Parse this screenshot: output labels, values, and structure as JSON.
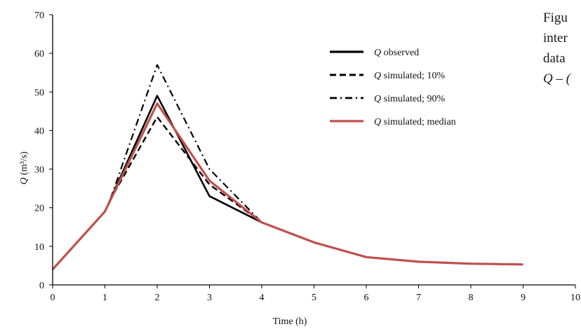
{
  "caption_fragments": [
    "Figu",
    "inter",
    "data",
    "Q – ("
  ],
  "chart_data": {
    "type": "line",
    "title": "",
    "xlabel": "Time (h)",
    "ylabel_italic": "Q",
    "ylabel_rest": " (m³/s)",
    "xlim": [
      0,
      10
    ],
    "ylim": [
      0,
      70
    ],
    "xticks": [
      0,
      1,
      2,
      3,
      4,
      5,
      6,
      7,
      8,
      9,
      10
    ],
    "yticks": [
      0,
      10,
      20,
      30,
      40,
      50,
      60,
      70
    ],
    "grid": false,
    "legend_position": "top-right",
    "series": [
      {
        "name_italic": "Q",
        "name": " observed",
        "color": "#000000",
        "dash": "solid",
        "points": [
          [
            0,
            4
          ],
          [
            1,
            19
          ],
          [
            2,
            49
          ],
          [
            3,
            23
          ],
          [
            4,
            16.2
          ],
          [
            5,
            11
          ],
          [
            6,
            7.2
          ],
          [
            7,
            6
          ],
          [
            8,
            5.5
          ],
          [
            9,
            5.3
          ]
        ]
      },
      {
        "name_italic": "Q",
        "name": " simulated; 10%",
        "color": "#000000",
        "dash": "dashed",
        "points": [
          [
            0,
            4
          ],
          [
            1,
            19
          ],
          [
            1.1,
            22
          ],
          [
            2,
            43.5
          ],
          [
            3,
            26
          ],
          [
            4,
            16.2
          ],
          [
            5,
            11
          ],
          [
            6,
            7.2
          ],
          [
            7,
            6
          ],
          [
            8,
            5.5
          ],
          [
            9,
            5.3
          ]
        ]
      },
      {
        "name_italic": "Q",
        "name": " simulated; 90%",
        "color": "#000000",
        "dash": "dashdot",
        "points": [
          [
            0,
            4
          ],
          [
            1,
            19
          ],
          [
            1.1,
            22
          ],
          [
            2,
            57
          ],
          [
            3,
            30
          ],
          [
            4,
            16.2
          ],
          [
            5,
            11
          ],
          [
            6,
            7.2
          ],
          [
            7,
            6
          ],
          [
            8,
            5.5
          ],
          [
            9,
            5.3
          ]
        ]
      },
      {
        "name_italic": "Q",
        "name": " simulated; median",
        "color": "#c0504d",
        "dash": "solid",
        "points": [
          [
            0,
            4
          ],
          [
            1,
            19
          ],
          [
            2,
            47
          ],
          [
            3,
            27
          ],
          [
            4,
            16.2
          ],
          [
            5,
            11
          ],
          [
            6,
            7.2
          ],
          [
            7,
            6
          ],
          [
            8,
            5.5
          ],
          [
            9,
            5.3
          ]
        ]
      }
    ]
  }
}
